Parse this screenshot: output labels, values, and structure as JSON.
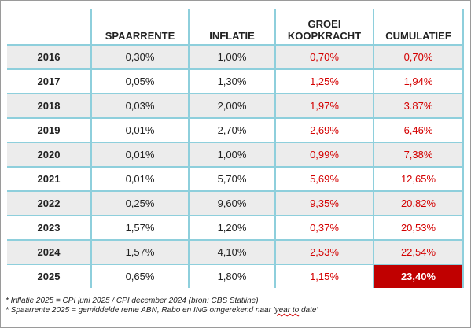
{
  "chart_data": {
    "type": "table",
    "columns": [
      "",
      "SPAARRENTE",
      "INFLATIE",
      "GROEI KOOPKRACHT",
      "CUMULATIEF"
    ],
    "rows": [
      {
        "year": "2016",
        "spaarrente": "0,30%",
        "inflatie": "1,00%",
        "groei": "0,70%",
        "cumulatief": "0,70%"
      },
      {
        "year": "2017",
        "spaarrente": "0,05%",
        "inflatie": "1,30%",
        "groei": "1,25%",
        "cumulatief": "1,94%"
      },
      {
        "year": "2018",
        "spaarrente": "0,03%",
        "inflatie": "2,00%",
        "groei": "1,97%",
        "cumulatief": "3.87%"
      },
      {
        "year": "2019",
        "spaarrente": "0,01%",
        "inflatie": "2,70%",
        "groei": "2,69%",
        "cumulatief": "6,46%"
      },
      {
        "year": "2020",
        "spaarrente": "0,01%",
        "inflatie": "1,00%",
        "groei": "0,99%",
        "cumulatief": "7,38%"
      },
      {
        "year": "2021",
        "spaarrente": "0,01%",
        "inflatie": "5,70%",
        "groei": "5,69%",
        "cumulatief": "12,65%"
      },
      {
        "year": "2022",
        "spaarrente": "0,25%",
        "inflatie": "9,60%",
        "groei": "9,35%",
        "cumulatief": "20,82%"
      },
      {
        "year": "2023",
        "spaarrente": "1,57%",
        "inflatie": "1,20%",
        "groei": "0,37%",
        "cumulatief": "20,53%"
      },
      {
        "year": "2024",
        "spaarrente": "1,57%",
        "inflatie": "4,10%",
        "groei": "2,53%",
        "cumulatief": "22,54%"
      },
      {
        "year": "2025",
        "spaarrente": "0,65%",
        "inflatie": "1,80%",
        "groei": "1,15%",
        "cumulatief": "23,40%"
      }
    ],
    "red_value_color": "#d40000",
    "highlight_color": "#c00000",
    "grid_color": "#8ecfdc",
    "shade_color": "#ececec"
  },
  "header": {
    "col1": "SPAARRENTE",
    "col2": "INFLATIE",
    "col3_line1": "GROEI",
    "col3_line2": "KOOPKRACHT",
    "col4": "CUMULATIEF"
  },
  "notes": {
    "line1": "* Inflatie 2025 = CPI juni 2025 / CPI december 2024 (bron: CBS Statline)",
    "line2_prefix": "* Spaarrente 2025 = gemiddelde rente ABN, Rabo en ING omgerekend naar '",
    "line2_underlined": "year to",
    "line2_suffix": " date'"
  }
}
